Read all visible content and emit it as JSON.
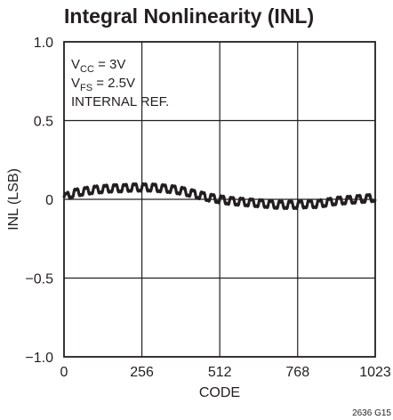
{
  "chart_data": {
    "type": "line",
    "title": "Integral Nonlinearity (INL)",
    "xlabel": "CODE",
    "ylabel": "INL (LSB)",
    "xlim": [
      0,
      1023
    ],
    "ylim": [
      -1.0,
      1.0
    ],
    "x_ticks": [
      0,
      256,
      512,
      768,
      1023
    ],
    "x_tick_labels": [
      "0",
      "256",
      "512",
      "768",
      "1023"
    ],
    "y_ticks": [
      1.0,
      0.5,
      0,
      -0.5,
      -1.0
    ],
    "y_tick_labels": [
      "1.0",
      "0.5",
      "0",
      "−0.5",
      "−1.0"
    ],
    "grid": true,
    "annotations": {
      "line1": {
        "main": "V",
        "sub": "CC",
        "rest": " = 3V"
      },
      "line2": {
        "main": "V",
        "sub": "FS",
        "rest": " = 2.5V"
      },
      "line3": "INTERNAL REF."
    },
    "figure_id": "2636 G15",
    "series": [
      {
        "x": [
          0,
          32,
          64,
          96,
          128,
          160,
          192,
          224,
          256,
          288,
          320,
          352,
          384,
          416,
          448,
          480,
          512,
          544,
          576,
          608,
          640,
          672,
          704,
          736,
          768,
          800,
          832,
          864,
          896,
          928,
          960,
          992,
          1023
        ],
        "y": [
          0.01,
          0.04,
          0.05,
          0.06,
          0.065,
          0.07,
          0.07,
          0.075,
          0.075,
          0.075,
          0.07,
          0.065,
          0.055,
          0.04,
          0.025,
          0.01,
          0.0,
          -0.01,
          -0.015,
          -0.02,
          -0.025,
          -0.03,
          -0.035,
          -0.035,
          -0.035,
          -0.03,
          -0.03,
          -0.02,
          -0.01,
          -0.005,
          0.0,
          0.005,
          0.01
        ],
        "ripple_amplitude": 0.025,
        "ripple_period": 32
      }
    ]
  },
  "colors": {
    "ink": "#231f20",
    "background": "#ffffff"
  }
}
